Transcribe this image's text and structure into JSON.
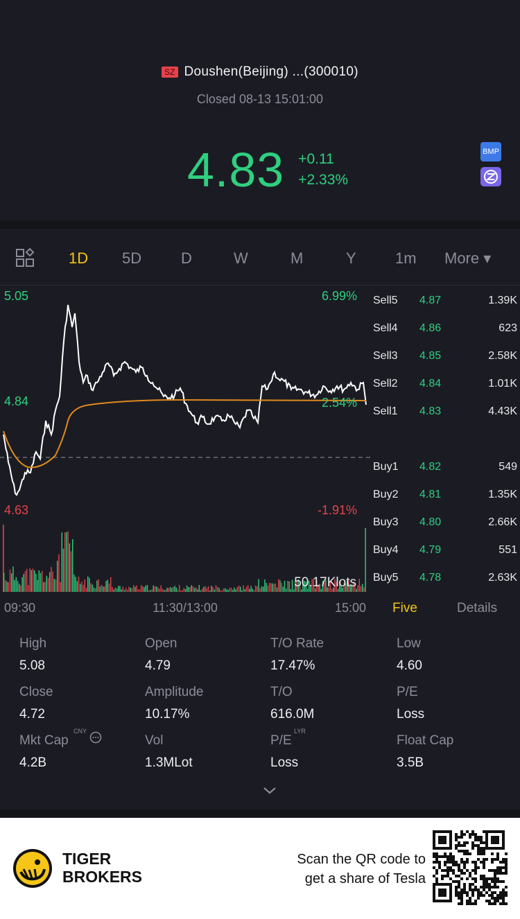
{
  "header": {
    "market_badge": "SZ",
    "stock_name": "Doushen(Beijing) ...(300010)",
    "status": "Closed 08-13 15:01:00",
    "price": "4.83",
    "change": "+0.11",
    "change_pct": "+2.33%",
    "bmp_label": "BMP",
    "accent_up": "#2fcf7f",
    "accent_down": "#e8414b"
  },
  "tabs": [
    {
      "label": "1D",
      "active": true
    },
    {
      "label": "5D"
    },
    {
      "label": "D"
    },
    {
      "label": "W"
    },
    {
      "label": "M"
    },
    {
      "label": "Y"
    },
    {
      "label": "1m"
    },
    {
      "label": "More ▾"
    }
  ],
  "chart": {
    "y_high": "5.05",
    "y_mid": "4.84",
    "y_low": "4.63",
    "pct_high": "6.99%",
    "pct_mid": "2.54%",
    "pct_low": "-1.91%",
    "volume_label": "50.17Klots",
    "time_start": "09:30",
    "time_mid": "11:30/13:00",
    "time_end": "15:00"
  },
  "order_book": {
    "sells": [
      {
        "label": "Sell5",
        "price": "4.87",
        "vol": "1.39K"
      },
      {
        "label": "Sell4",
        "price": "4.86",
        "vol": "623"
      },
      {
        "label": "Sell3",
        "price": "4.85",
        "vol": "2.58K"
      },
      {
        "label": "Sell2",
        "price": "4.84",
        "vol": "1.01K"
      },
      {
        "label": "Sell1",
        "price": "4.83",
        "vol": "4.43K"
      }
    ],
    "buys": [
      {
        "label": "Buy1",
        "price": "4.82",
        "vol": "549"
      },
      {
        "label": "Buy2",
        "price": "4.81",
        "vol": "1.35K"
      },
      {
        "label": "Buy3",
        "price": "4.80",
        "vol": "2.66K"
      },
      {
        "label": "Buy4",
        "price": "4.79",
        "vol": "551"
      },
      {
        "label": "Buy5",
        "price": "4.78",
        "vol": "2.63K"
      }
    ],
    "tab_five": "Five",
    "tab_details": "Details"
  },
  "stats": {
    "high": {
      "label": "High",
      "value": "5.08"
    },
    "open": {
      "label": "Open",
      "value": "4.79"
    },
    "to_rate": {
      "label": "T/O Rate",
      "value": "17.47%"
    },
    "low": {
      "label": "Low",
      "value": "4.60"
    },
    "close": {
      "label": "Close",
      "value": "4.72"
    },
    "amplitude": {
      "label": "Amplitude",
      "value": "10.17%"
    },
    "to": {
      "label": "T/O",
      "value": "616.0M"
    },
    "pe": {
      "label": "P/E",
      "value": "Loss"
    },
    "mkt_cap": {
      "label": "Mkt Cap",
      "sup": "CNY",
      "value": "4.2B"
    },
    "vol": {
      "label": "Vol",
      "value": "1.3MLot"
    },
    "pe_lyr": {
      "label": "P/E",
      "sup": "LYR",
      "value": "Loss"
    },
    "float_cap": {
      "label": "Float Cap",
      "value": "3.5B"
    }
  },
  "footer": {
    "brand_line1": "TIGER",
    "brand_line2": "BROKERS",
    "cta_line1": "Scan the QR code to",
    "cta_line2": "get a share of Tesla"
  }
}
